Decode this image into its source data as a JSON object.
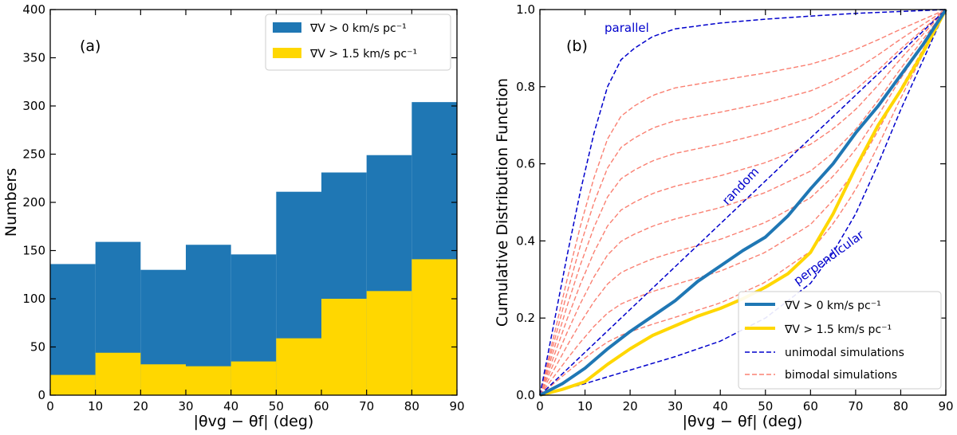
{
  "chart_data": [
    {
      "type": "bar",
      "panel_label": "(a)",
      "xlabel": "|θvg − θf| (deg)",
      "ylabel": "Numbers",
      "xlim": [
        0,
        90
      ],
      "ylim": [
        0,
        400
      ],
      "xticks": [
        0,
        10,
        20,
        30,
        40,
        50,
        60,
        70,
        80,
        90
      ],
      "yticks": [
        0,
        50,
        100,
        150,
        200,
        250,
        300,
        350,
        400
      ],
      "bins": [
        [
          0,
          10
        ],
        [
          10,
          20
        ],
        [
          20,
          30
        ],
        [
          30,
          40
        ],
        [
          40,
          50
        ],
        [
          50,
          60
        ],
        [
          60,
          70
        ],
        [
          70,
          80
        ],
        [
          80,
          90
        ]
      ],
      "series": [
        {
          "name": "∇V > 0 km/s pc⁻¹",
          "color": "#1f77b4",
          "values": [
            136,
            159,
            130,
            156,
            146,
            211,
            231,
            249,
            304
          ]
        },
        {
          "name": "∇V > 1.5 km/s pc⁻¹",
          "color": "#ffd700",
          "values": [
            21,
            44,
            32,
            30,
            35,
            59,
            100,
            108,
            141
          ]
        }
      ],
      "legend_position": "top-right"
    },
    {
      "type": "line",
      "panel_label": "(b)",
      "xlabel": "|θvg − θf| (deg)",
      "ylabel": "Cumulative Distribution Function",
      "xlim": [
        0,
        90
      ],
      "ylim": [
        0,
        1.0
      ],
      "xticks": [
        0,
        10,
        20,
        30,
        40,
        50,
        60,
        70,
        80,
        90
      ],
      "yticks": [
        0.0,
        0.2,
        0.4,
        0.6,
        0.8,
        1.0
      ],
      "ytick_labels": [
        "0.0",
        "0.2",
        "0.4",
        "0.6",
        "0.8",
        "1.0"
      ],
      "annotations": [
        "parallel",
        "random",
        "perpendicular"
      ],
      "series": [
        {
          "name": "∇V > 0 km/s pc⁻¹",
          "color": "#1f77b4",
          "x": [
            0,
            5,
            10,
            15,
            20,
            25,
            30,
            35,
            40,
            45,
            50,
            55,
            60,
            65,
            70,
            75,
            80,
            85,
            90
          ],
          "y": [
            0,
            0.03,
            0.07,
            0.12,
            0.165,
            0.205,
            0.245,
            0.295,
            0.335,
            0.375,
            0.41,
            0.465,
            0.535,
            0.6,
            0.68,
            0.75,
            0.83,
            0.91,
            1.0
          ]
        },
        {
          "name": "∇V > 1.5 km/s pc⁻¹",
          "color": "#ffd700",
          "x": [
            0,
            5,
            10,
            15,
            20,
            25,
            30,
            35,
            40,
            45,
            50,
            55,
            60,
            65,
            70,
            75,
            80,
            85,
            90
          ],
          "y": [
            0,
            0.015,
            0.035,
            0.08,
            0.12,
            0.155,
            0.18,
            0.205,
            0.225,
            0.25,
            0.28,
            0.315,
            0.37,
            0.47,
            0.59,
            0.7,
            0.79,
            0.89,
            1.0
          ]
        },
        {
          "name": "unimodal simulations",
          "color": "#0000cc",
          "style": "dashed",
          "curves": [
            {
              "label": "parallel",
              "x": [
                0,
                3,
                6,
                9,
                12,
                15,
                18,
                21,
                25,
                30,
                40,
                50,
                60,
                70,
                80,
                90
              ],
              "y": [
                0,
                0.18,
                0.36,
                0.53,
                0.68,
                0.8,
                0.87,
                0.9,
                0.93,
                0.95,
                0.965,
                0.975,
                0.983,
                0.99,
                0.995,
                1.0
              ]
            },
            {
              "label": "random",
              "x": [
                0,
                90
              ],
              "y": [
                0,
                1.0
              ]
            },
            {
              "label": "perpendicular",
              "x": [
                0,
                10,
                20,
                30,
                40,
                50,
                60,
                65,
                70,
                75,
                80,
                85,
                90
              ],
              "y": [
                0,
                0.03,
                0.065,
                0.1,
                0.14,
                0.2,
                0.29,
                0.37,
                0.47,
                0.6,
                0.74,
                0.87,
                1.0
              ]
            }
          ]
        },
        {
          "name": "bimodal simulations",
          "color": "#fa8072",
          "style": "dashed",
          "fractions": [
            0.12,
            0.22,
            0.32,
            0.42,
            0.52,
            0.62,
            0.72,
            0.82
          ]
        }
      ],
      "legend_position": "bottom-right"
    }
  ]
}
